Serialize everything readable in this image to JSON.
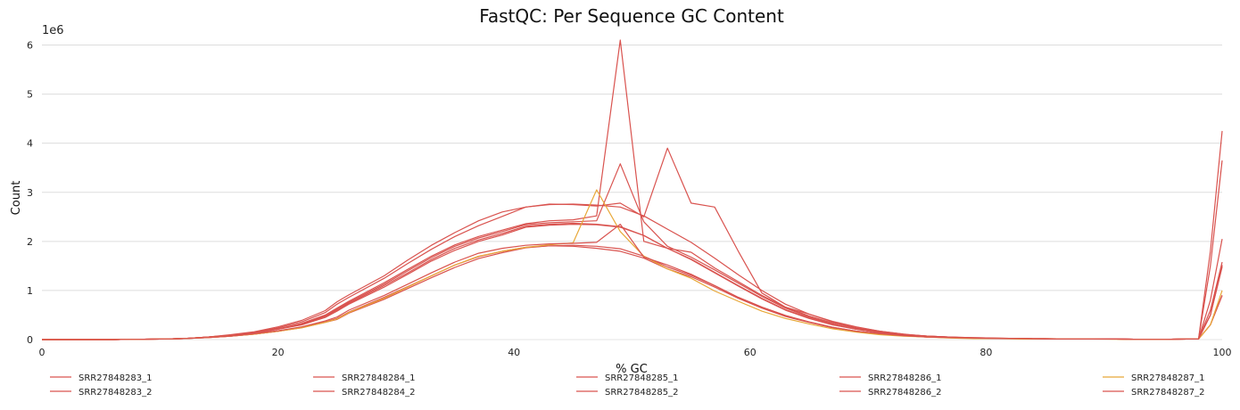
{
  "chart_data": {
    "type": "line",
    "title": "FastQC: Per Sequence GC Content",
    "xlabel": "% GC",
    "ylabel": "Count",
    "y_scale_label": "1e6",
    "xlim": [
      0,
      100
    ],
    "ylim": [
      0,
      6.3
    ],
    "y_units": "millions (×1e6)",
    "x_ticks": [
      "0",
      "20",
      "40",
      "60",
      "80",
      "100"
    ],
    "y_ticks": [
      "0",
      "1",
      "2",
      "3",
      "4",
      "5",
      "6"
    ],
    "grid": "horizontal",
    "legend_position": "bottom",
    "x": [
      0,
      2,
      4,
      6,
      8,
      10,
      12,
      14,
      16,
      18,
      20,
      22,
      24,
      25,
      26,
      29,
      31,
      33,
      35,
      37,
      39,
      41,
      43,
      45,
      47,
      49,
      51,
      53,
      55,
      57,
      59,
      61,
      63,
      65,
      67,
      69,
      71,
      73,
      75,
      77,
      79,
      81,
      83,
      85,
      87,
      89,
      91,
      93,
      95,
      97,
      98,
      99,
      100
    ],
    "series": [
      {
        "name": "SRR27848283_1",
        "color": "#d9534f",
        "values": [
          0,
          0,
          0,
          0,
          0.005,
          0.01,
          0.02,
          0.04,
          0.07,
          0.11,
          0.17,
          0.24,
          0.35,
          0.41,
          0.54,
          0.82,
          1.04,
          1.26,
          1.47,
          1.65,
          1.77,
          1.87,
          1.91,
          1.92,
          1.9,
          1.85,
          1.7,
          1.48,
          1.31,
          1.1,
          0.86,
          0.66,
          0.49,
          0.36,
          0.25,
          0.17,
          0.12,
          0.08,
          0.05,
          0.04,
          0.03,
          0.02,
          0.02,
          0.01,
          0.01,
          0.01,
          0.01,
          0.005,
          0.005,
          0.01,
          0.01,
          0.5,
          1.48
        ]
      },
      {
        "name": "SRR27848283_2",
        "color": "#d9534f",
        "values": [
          0,
          0,
          0,
          0,
          0.005,
          0.01,
          0.02,
          0.04,
          0.07,
          0.11,
          0.17,
          0.25,
          0.36,
          0.43,
          0.56,
          0.86,
          1.08,
          1.3,
          1.52,
          1.69,
          1.8,
          1.88,
          1.91,
          1.9,
          1.86,
          1.8,
          1.66,
          1.44,
          1.28,
          1.07,
          0.84,
          0.64,
          0.47,
          0.35,
          0.24,
          0.17,
          0.12,
          0.08,
          0.05,
          0.04,
          0.03,
          0.02,
          0.02,
          0.01,
          0.01,
          0.01,
          0.01,
          0.005,
          0.005,
          0.01,
          0.01,
          0.5,
          1.52
        ]
      },
      {
        "name": "SRR27848284_1",
        "color": "#d9534f",
        "values": [
          0,
          0,
          0,
          0,
          0.005,
          0.01,
          0.02,
          0.05,
          0.08,
          0.13,
          0.21,
          0.3,
          0.45,
          0.58,
          0.72,
          1.07,
          1.33,
          1.6,
          1.82,
          2.0,
          2.13,
          2.29,
          2.33,
          2.35,
          2.34,
          2.29,
          2.12,
          1.86,
          1.64,
          1.37,
          1.1,
          0.84,
          0.61,
          0.44,
          0.31,
          0.21,
          0.14,
          0.09,
          0.06,
          0.04,
          0.03,
          0.02,
          0.02,
          0.01,
          0.01,
          0.01,
          0.01,
          0.005,
          0.005,
          0.01,
          0.01,
          0.8,
          2.05
        ]
      },
      {
        "name": "SRR27848284_2",
        "color": "#d9534f",
        "values": [
          0,
          0,
          0,
          0,
          0.005,
          0.01,
          0.02,
          0.05,
          0.08,
          0.13,
          0.21,
          0.31,
          0.47,
          0.6,
          0.74,
          1.1,
          1.36,
          1.63,
          1.86,
          2.03,
          2.16,
          2.31,
          2.35,
          2.37,
          2.35,
          2.3,
          2.12,
          1.86,
          1.63,
          1.36,
          1.09,
          0.83,
          0.6,
          0.43,
          0.3,
          0.21,
          0.14,
          0.09,
          0.06,
          0.04,
          0.03,
          0.02,
          0.02,
          0.01,
          0.01,
          0.01,
          0.01,
          0.005,
          0.005,
          0.01,
          0.01,
          1.5,
          3.65
        ]
      },
      {
        "name": "SRR27848285_1",
        "color": "#d9534f",
        "values": [
          0,
          0,
          0,
          0,
          0.005,
          0.01,
          0.02,
          0.05,
          0.09,
          0.14,
          0.22,
          0.32,
          0.48,
          0.62,
          0.76,
          1.13,
          1.4,
          1.67,
          1.9,
          2.07,
          2.2,
          2.34,
          2.38,
          2.4,
          2.42,
          3.58,
          2.4,
          1.9,
          1.68,
          1.42,
          1.15,
          0.88,
          0.64,
          0.46,
          0.33,
          0.23,
          0.15,
          0.1,
          0.07,
          0.05,
          0.03,
          0.02,
          0.02,
          0.01,
          0.01,
          0.01,
          0.01,
          0.005,
          0.005,
          0.01,
          0.01,
          1.8,
          4.25
        ]
      },
      {
        "name": "SRR27848285_2",
        "color": "#d9534f",
        "values": [
          0,
          0,
          0,
          0,
          0.005,
          0.01,
          0.02,
          0.05,
          0.09,
          0.14,
          0.22,
          0.33,
          0.5,
          0.64,
          0.78,
          1.16,
          1.43,
          1.7,
          1.93,
          2.1,
          2.23,
          2.36,
          2.42,
          2.44,
          2.52,
          6.1,
          2.0,
          1.86,
          1.78,
          1.46,
          1.18,
          0.9,
          0.66,
          0.48,
          0.34,
          0.23,
          0.16,
          0.1,
          0.07,
          0.05,
          0.03,
          0.02,
          0.02,
          0.01,
          0.01,
          0.01,
          0.01,
          0.005,
          0.005,
          0.01,
          0.01,
          0.6,
          1.58
        ]
      },
      {
        "name": "SRR27848286_1",
        "color": "#d9534f",
        "values": [
          0,
          0,
          0,
          0,
          0.005,
          0.01,
          0.02,
          0.05,
          0.09,
          0.15,
          0.24,
          0.36,
          0.55,
          0.72,
          0.86,
          1.25,
          1.55,
          1.84,
          2.1,
          2.32,
          2.51,
          2.7,
          2.75,
          2.76,
          2.74,
          2.7,
          2.52,
          2.25,
          1.98,
          1.66,
          1.32,
          1.0,
          0.72,
          0.52,
          0.37,
          0.26,
          0.17,
          0.11,
          0.07,
          0.05,
          0.04,
          0.03,
          0.02,
          0.02,
          0.01,
          0.01,
          0.01,
          0.005,
          0.005,
          0.01,
          0.01,
          0.3,
          0.9
        ]
      },
      {
        "name": "SRR27848286_2",
        "color": "#d9534f",
        "values": [
          0,
          0,
          0,
          0,
          0.005,
          0.01,
          0.02,
          0.05,
          0.1,
          0.16,
          0.26,
          0.39,
          0.59,
          0.77,
          0.91,
          1.3,
          1.62,
          1.92,
          2.18,
          2.42,
          2.6,
          2.7,
          2.76,
          2.75,
          2.72,
          2.78,
          2.5,
          3.9,
          2.78,
          2.7,
          1.8,
          0.95,
          0.66,
          0.52,
          0.36,
          0.25,
          0.17,
          0.11,
          0.07,
          0.05,
          0.04,
          0.03,
          0.02,
          0.02,
          0.01,
          0.01,
          0.01,
          0.005,
          0.005,
          0.01,
          0.01,
          0.3,
          0.9
        ]
      },
      {
        "name": "SRR27848287_1",
        "color": "#e8a838",
        "values": [
          0,
          0,
          0,
          0,
          0.005,
          0.01,
          0.02,
          0.04,
          0.07,
          0.11,
          0.17,
          0.24,
          0.35,
          0.42,
          0.55,
          0.84,
          1.07,
          1.3,
          1.52,
          1.7,
          1.8,
          1.88,
          1.93,
          1.97,
          3.05,
          2.2,
          1.7,
          1.44,
          1.25,
          0.99,
          0.78,
          0.58,
          0.43,
          0.32,
          0.22,
          0.15,
          0.1,
          0.07,
          0.05,
          0.03,
          0.02,
          0.02,
          0.01,
          0.01,
          0.01,
          0.01,
          0.005,
          0.005,
          0.005,
          0.01,
          0.01,
          0.3,
          1.0
        ]
      },
      {
        "name": "SRR27848287_2",
        "color": "#d9534f",
        "values": [
          0,
          0,
          0,
          0,
          0.005,
          0.01,
          0.02,
          0.04,
          0.07,
          0.12,
          0.18,
          0.26,
          0.38,
          0.46,
          0.6,
          0.9,
          1.13,
          1.36,
          1.58,
          1.76,
          1.86,
          1.92,
          1.95,
          1.96,
          1.98,
          2.35,
          1.68,
          1.52,
          1.33,
          1.1,
          0.86,
          0.66,
          0.49,
          0.36,
          0.25,
          0.17,
          0.12,
          0.08,
          0.05,
          0.04,
          0.03,
          0.02,
          0.02,
          0.01,
          0.01,
          0.01,
          0.01,
          0.005,
          0.005,
          0.01,
          0.01,
          0.5,
          1.5
        ]
      }
    ]
  }
}
